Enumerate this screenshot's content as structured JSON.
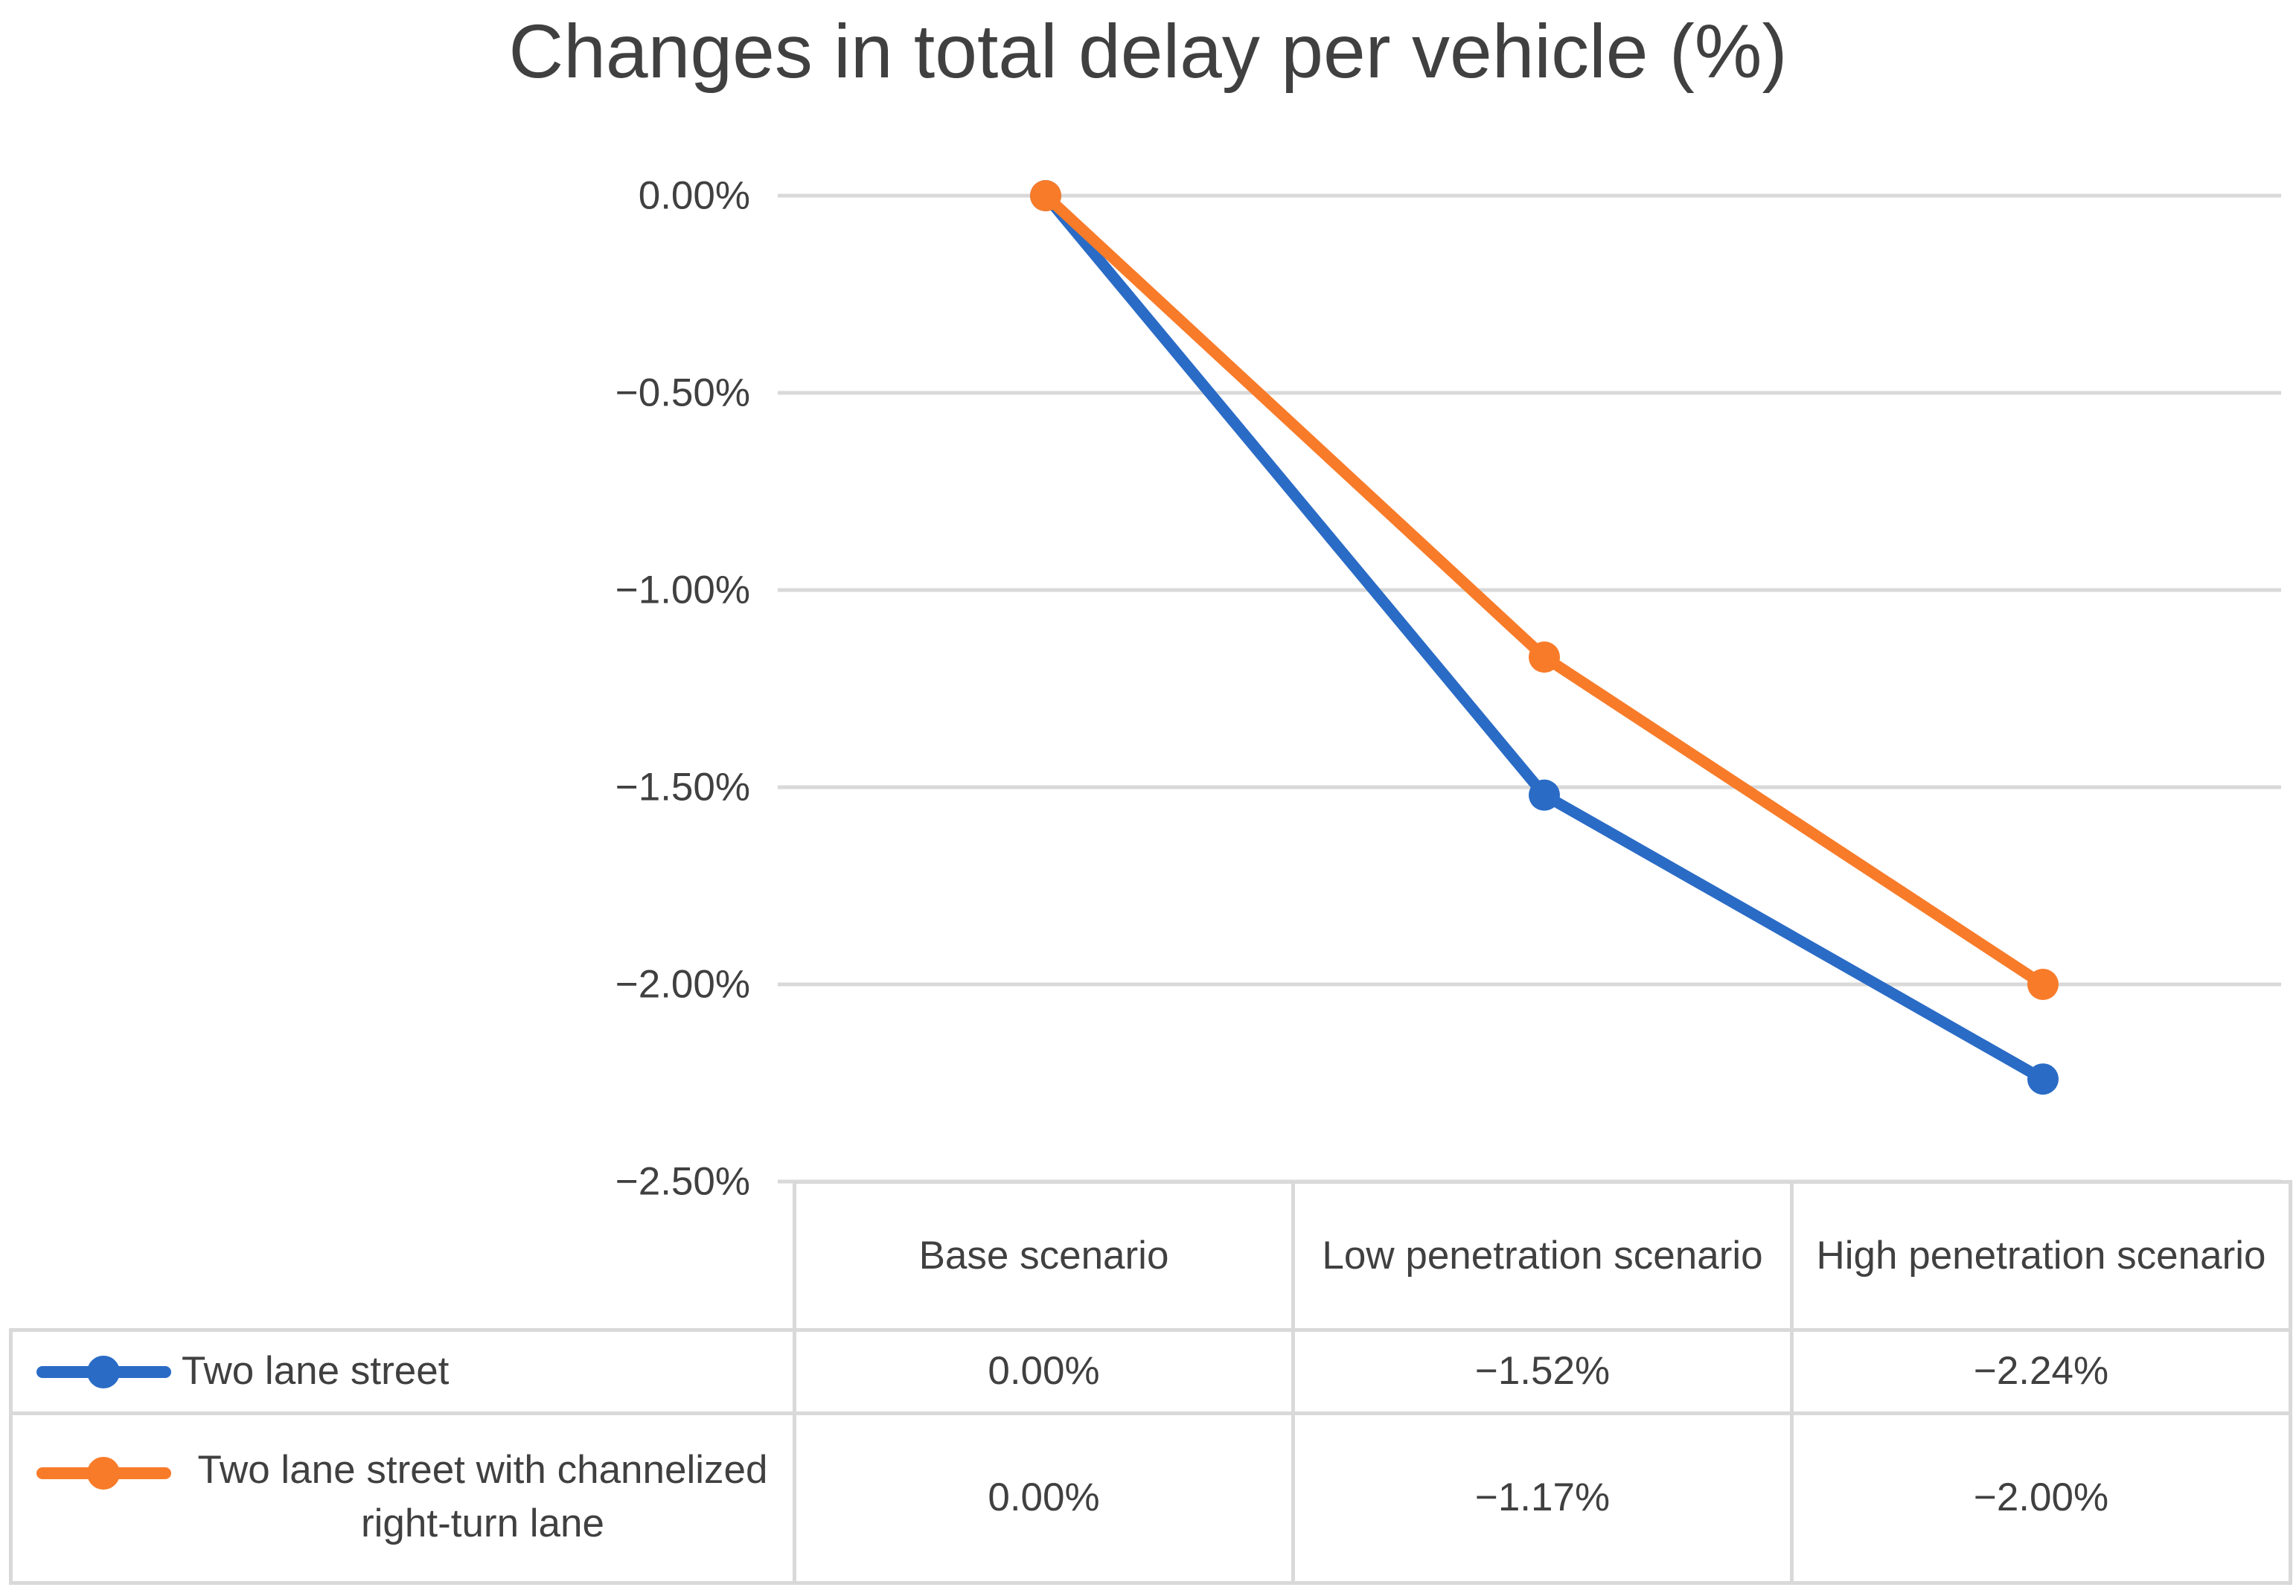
{
  "title": "Changes in total delay per vehicle (%)",
  "chart_data": {
    "type": "line",
    "title": "Changes in total delay per vehicle (%)",
    "categories": [
      "Base scenario",
      "Low penetration scenario",
      "High penetration scenario"
    ],
    "series": [
      {
        "name": "Two lane street",
        "color": "#2A6BC6",
        "marker": "circle",
        "values": [
          0.0,
          -1.52,
          -2.24
        ]
      },
      {
        "name": "Two lane street with channelized right-turn lane",
        "color": "#F87B29",
        "marker": "circle",
        "values": [
          0.0,
          -1.17,
          -2.0
        ]
      }
    ],
    "ylim": [
      -2.5,
      0
    ],
    "yticks": [
      {
        "value": 0,
        "label": "0.00%"
      },
      {
        "value": -0.5,
        "label": "−0.50%"
      },
      {
        "value": -1.0,
        "label": "−1.00%"
      },
      {
        "value": -1.5,
        "label": "−1.50%"
      },
      {
        "value": -2.0,
        "label": "−2.00%"
      },
      {
        "value": -2.5,
        "label": "−2.50%"
      }
    ],
    "grid": true,
    "gridline_color": "#D9D9D9",
    "legend_position": "data-table-left"
  },
  "table": {
    "column_headers": [
      "Base scenario",
      "Low penetration scenario",
      "High penetration scenario"
    ],
    "rows": [
      {
        "label": "Two lane street",
        "series_color": "#2A6BC6",
        "values": [
          "0.00%",
          "−1.52%",
          "−2.24%"
        ]
      },
      {
        "label": "Two lane street with channelized right-turn lane",
        "series_color": "#F87B29",
        "values": [
          "0.00%",
          "−1.17%",
          "−2.00%"
        ]
      }
    ]
  },
  "colors": {
    "text": "#404040",
    "gridline": "#D9D9D9",
    "table_border": "#D9D9D9",
    "background": "#FFFFFF",
    "series_blue": "#2A6BC6",
    "series_orange": "#F87B29"
  }
}
